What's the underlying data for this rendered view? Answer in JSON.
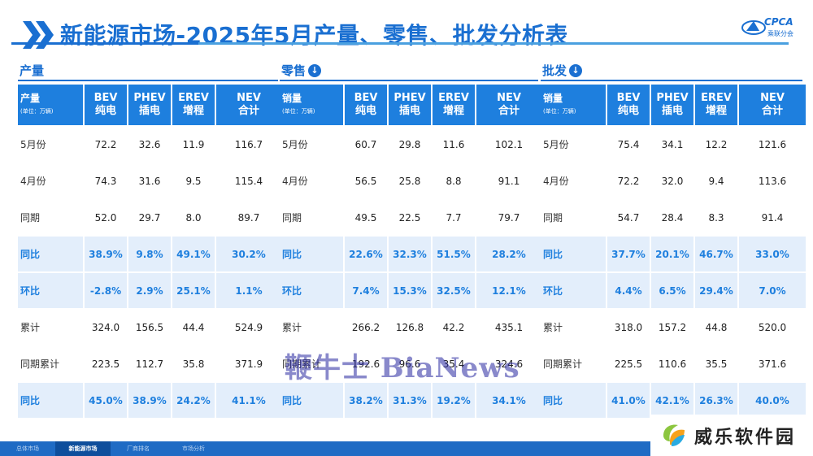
{
  "title": "新能源市场-2025年5月产量、零售、批发分析表",
  "logo": {
    "text": "CPCA",
    "sub": "乘联分会"
  },
  "sections": [
    {
      "head": "产量",
      "has_icon": false,
      "col_label": "产量",
      "col_label_sub": "(单位：万辆)",
      "cols": [
        [
          "BEV",
          "纯电"
        ],
        [
          "PHEV",
          "插电"
        ],
        [
          "EREV",
          "增程"
        ],
        [
          "NEV",
          "合计"
        ]
      ],
      "rows": [
        {
          "label": "5月份",
          "type": "norm",
          "values": [
            "72.2",
            "32.6",
            "11.9",
            "116.7"
          ]
        },
        {
          "label": "4月份",
          "type": "norm",
          "values": [
            "74.3",
            "31.6",
            "9.5",
            "115.4"
          ]
        },
        {
          "label": "同期",
          "type": "norm",
          "values": [
            "52.0",
            "29.7",
            "8.0",
            "89.7"
          ]
        },
        {
          "label": "同比",
          "type": "pct",
          "values": [
            "38.9%",
            "9.8%",
            "49.1%",
            "30.2%"
          ]
        },
        {
          "label": "环比",
          "type": "pct",
          "values": [
            "-2.8%",
            "2.9%",
            "25.1%",
            "1.1%"
          ]
        },
        {
          "label": "累计",
          "type": "norm",
          "values": [
            "324.0",
            "156.5",
            "44.4",
            "524.9"
          ]
        },
        {
          "label": "同期累计",
          "type": "norm",
          "values": [
            "223.5",
            "112.7",
            "35.8",
            "371.9"
          ]
        },
        {
          "label": "同比",
          "type": "pct",
          "values": [
            "45.0%",
            "38.9%",
            "24.2%",
            "41.1%"
          ]
        }
      ]
    },
    {
      "head": "零售",
      "has_icon": true,
      "col_label": "销量",
      "col_label_sub": "(单位：万辆)",
      "cols": [
        [
          "BEV",
          "纯电"
        ],
        [
          "PHEV",
          "插电"
        ],
        [
          "EREV",
          "增程"
        ],
        [
          "NEV",
          "合计"
        ]
      ],
      "rows": [
        {
          "label": "5月份",
          "type": "norm",
          "values": [
            "60.7",
            "29.8",
            "11.6",
            "102.1"
          ]
        },
        {
          "label": "4月份",
          "type": "norm",
          "values": [
            "56.5",
            "25.8",
            "8.8",
            "91.1"
          ]
        },
        {
          "label": "同期",
          "type": "norm",
          "values": [
            "49.5",
            "22.5",
            "7.7",
            "79.7"
          ]
        },
        {
          "label": "同比",
          "type": "pct",
          "values": [
            "22.6%",
            "32.3%",
            "51.5%",
            "28.2%"
          ]
        },
        {
          "label": "环比",
          "type": "pct",
          "values": [
            "7.4%",
            "15.3%",
            "32.5%",
            "12.1%"
          ]
        },
        {
          "label": "累计",
          "type": "norm",
          "values": [
            "266.2",
            "126.8",
            "42.2",
            "435.1"
          ]
        },
        {
          "label": "同期累计",
          "type": "norm",
          "values": [
            "192.6",
            "96.6",
            "35.4",
            "324.6"
          ]
        },
        {
          "label": "同比",
          "type": "pct",
          "values": [
            "38.2%",
            "31.3%",
            "19.2%",
            "34.1%"
          ]
        }
      ]
    },
    {
      "head": "批发",
      "has_icon": true,
      "col_label": "销量",
      "col_label_sub": "(单位：万辆)",
      "cols": [
        [
          "BEV",
          "纯电"
        ],
        [
          "PHEV",
          "插电"
        ],
        [
          "EREV",
          "增程"
        ],
        [
          "NEV",
          "合计"
        ]
      ],
      "rows": [
        {
          "label": "5月份",
          "type": "norm",
          "values": [
            "75.4",
            "34.1",
            "12.2",
            "121.6"
          ]
        },
        {
          "label": "4月份",
          "type": "norm",
          "values": [
            "72.2",
            "32.0",
            "9.4",
            "113.6"
          ]
        },
        {
          "label": "同期",
          "type": "norm",
          "values": [
            "54.7",
            "28.4",
            "8.3",
            "91.4"
          ]
        },
        {
          "label": "同比",
          "type": "pct",
          "values": [
            "37.7%",
            "20.1%",
            "46.7%",
            "33.0%"
          ]
        },
        {
          "label": "环比",
          "type": "pct",
          "values": [
            "4.4%",
            "6.5%",
            "29.4%",
            "7.0%"
          ]
        },
        {
          "label": "累计",
          "type": "norm",
          "values": [
            "318.0",
            "157.2",
            "44.8",
            "520.0"
          ]
        },
        {
          "label": "同期累计",
          "type": "norm",
          "values": [
            "225.5",
            "110.6",
            "35.5",
            "371.6"
          ]
        },
        {
          "label": "同比",
          "type": "pct",
          "values": [
            "41.0%",
            "42.1%",
            "26.3%",
            "40.0%"
          ]
        }
      ]
    }
  ],
  "watermark": "鞭牛士 BiaNews",
  "footer_tabs": [
    {
      "label": "总体市场",
      "active": false
    },
    {
      "label": "新能源市场",
      "active": true
    },
    {
      "label": "厂商排名",
      "active": false
    },
    {
      "label": "市场分析",
      "active": false
    }
  ],
  "brand": {
    "text": "威乐软件园"
  },
  "colors": {
    "accent": "#1e7fde",
    "title": "#1a6fd1",
    "pct_bg": "#e3eefb",
    "footer": "#1f6bc4"
  }
}
